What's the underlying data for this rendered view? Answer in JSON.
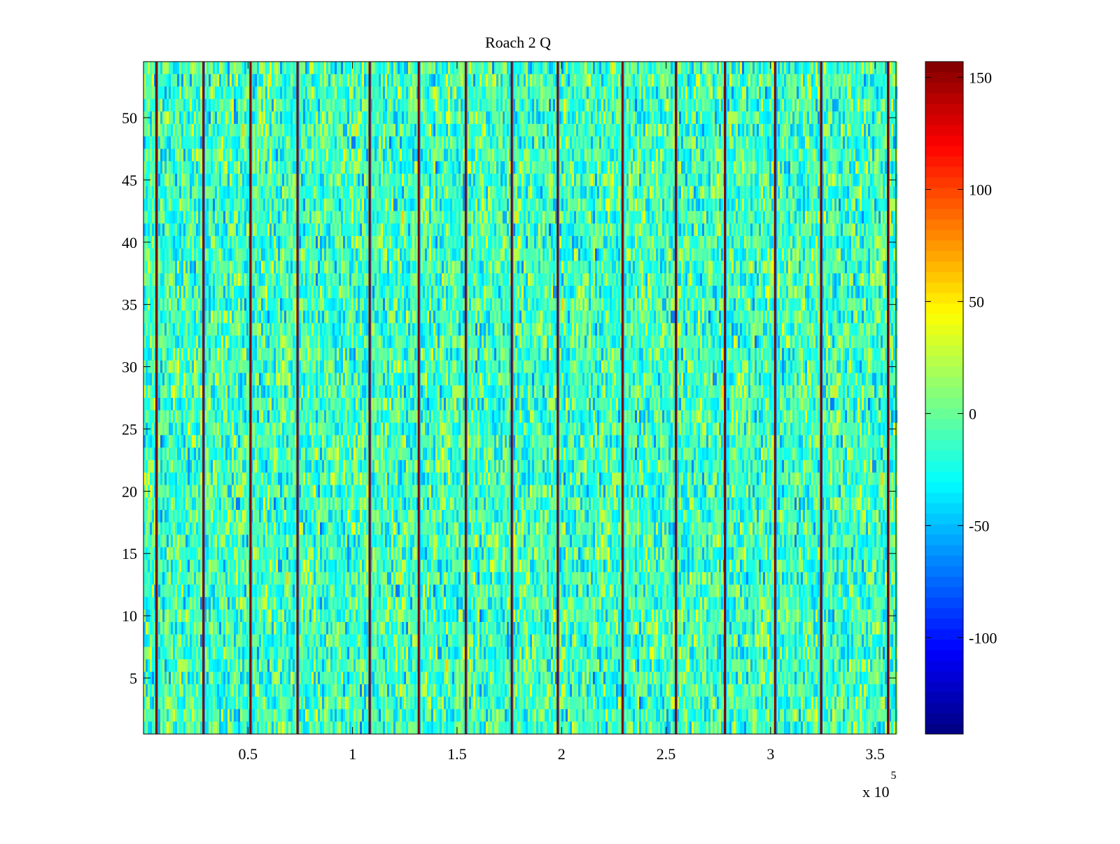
{
  "chart_data": {
    "type": "heatmap",
    "title": "Roach 2 Q",
    "xlabel": "",
    "ylabel": "",
    "x_multiplier": "x 10",
    "x_multiplier_exponent": "5",
    "xlim": [
      0,
      3.6
    ],
    "ylim": [
      0.5,
      54.5
    ],
    "xticks": [
      0.5,
      1,
      1.5,
      2,
      2.5,
      3,
      3.5
    ],
    "xtick_labels": [
      "0.5",
      "1",
      "1.5",
      "2",
      "2.5",
      "3",
      "3.5"
    ],
    "yticks": [
      5,
      10,
      15,
      20,
      25,
      30,
      35,
      40,
      45,
      50
    ],
    "ytick_labels": [
      "5",
      "10",
      "15",
      "20",
      "25",
      "30",
      "35",
      "40",
      "45",
      "50"
    ],
    "rows": 54,
    "colormap": "jet",
    "clim": [
      -143,
      157
    ],
    "colorbar": {
      "ticks": [
        -100,
        -50,
        0,
        50,
        100,
        150
      ],
      "tick_labels": [
        "-100",
        "-50",
        "0",
        "50",
        "100",
        "150"
      ],
      "placement": "right"
    },
    "background_value_range": [
      -50,
      40
    ],
    "dominant_value": -10,
    "vertical_spike_lines_x": [
      0.06,
      0.285,
      0.51,
      0.735,
      1.08,
      1.315,
      1.54,
      1.76,
      1.98,
      2.29,
      2.545,
      2.78,
      3.02,
      3.24,
      3.56
    ],
    "spike_value": 157
  }
}
